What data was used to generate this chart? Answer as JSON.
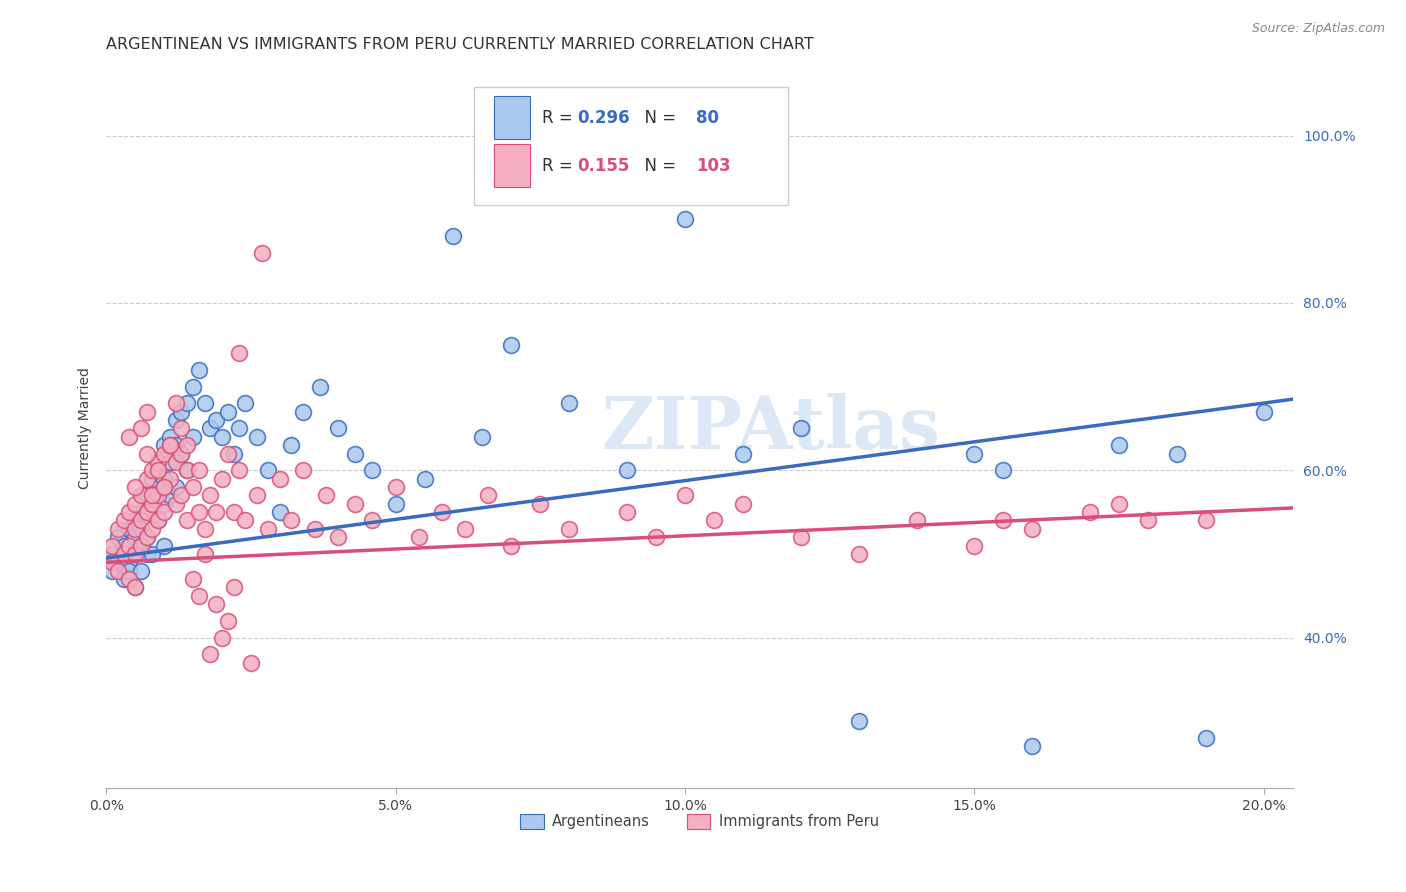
{
  "title": "ARGENTINEAN VS IMMIGRANTS FROM PERU CURRENTLY MARRIED CORRELATION CHART",
  "source": "Source: ZipAtlas.com",
  "ylabel": "Currently Married",
  "watermark": "ZIPAtlas",
  "legend_blue_R": "0.296",
  "legend_blue_N": "80",
  "legend_pink_R": "0.155",
  "legend_pink_N": "103",
  "legend_blue_label": "Argentineans",
  "legend_pink_label": "Immigrants from Peru",
  "x_ticks_vals": [
    0.0,
    0.05,
    0.1,
    0.15,
    0.2
  ],
  "x_ticks_labels": [
    "0.0%",
    "5.0%",
    "10.0%",
    "15.0%",
    "20.0%"
  ],
  "y_ticks_vals": [
    0.4,
    0.6,
    0.8,
    1.0
  ],
  "y_ticks_labels": [
    "40.0%",
    "60.0%",
    "80.0%",
    "100.0%"
  ],
  "xlim": [
    0.0,
    0.205
  ],
  "ylim": [
    0.22,
    1.08
  ],
  "blue_color": "#aac9ee",
  "pink_color": "#f4afc0",
  "line_blue": "#3a6bbf",
  "line_pink": "#d94f7a",
  "title_fontsize": 11.5,
  "source_fontsize": 9,
  "blue_x": [
    0.001,
    0.001,
    0.002,
    0.002,
    0.003,
    0.003,
    0.003,
    0.004,
    0.004,
    0.004,
    0.005,
    0.005,
    0.005,
    0.005,
    0.006,
    0.006,
    0.006,
    0.006,
    0.007,
    0.007,
    0.007,
    0.007,
    0.008,
    0.008,
    0.008,
    0.009,
    0.009,
    0.009,
    0.01,
    0.01,
    0.01,
    0.01,
    0.011,
    0.011,
    0.011,
    0.012,
    0.012,
    0.012,
    0.013,
    0.013,
    0.014,
    0.014,
    0.015,
    0.015,
    0.016,
    0.017,
    0.018,
    0.019,
    0.02,
    0.021,
    0.022,
    0.023,
    0.024,
    0.026,
    0.028,
    0.03,
    0.032,
    0.034,
    0.037,
    0.04,
    0.043,
    0.046,
    0.05,
    0.055,
    0.06,
    0.065,
    0.07,
    0.08,
    0.09,
    0.1,
    0.11,
    0.12,
    0.13,
    0.15,
    0.155,
    0.16,
    0.175,
    0.185,
    0.19,
    0.2
  ],
  "blue_y": [
    0.5,
    0.48,
    0.52,
    0.49,
    0.51,
    0.5,
    0.47,
    0.53,
    0.49,
    0.48,
    0.54,
    0.52,
    0.5,
    0.46,
    0.55,
    0.53,
    0.51,
    0.48,
    0.57,
    0.55,
    0.52,
    0.5,
    0.59,
    0.56,
    0.5,
    0.6,
    0.57,
    0.54,
    0.63,
    0.59,
    0.56,
    0.51,
    0.64,
    0.61,
    0.57,
    0.66,
    0.63,
    0.58,
    0.67,
    0.62,
    0.68,
    0.6,
    0.7,
    0.64,
    0.72,
    0.68,
    0.65,
    0.66,
    0.64,
    0.67,
    0.62,
    0.65,
    0.68,
    0.64,
    0.6,
    0.55,
    0.63,
    0.67,
    0.7,
    0.65,
    0.62,
    0.6,
    0.56,
    0.59,
    0.88,
    0.64,
    0.75,
    0.68,
    0.6,
    0.9,
    0.62,
    0.65,
    0.3,
    0.62,
    0.6,
    0.27,
    0.63,
    0.62,
    0.28,
    0.67
  ],
  "pink_x": [
    0.001,
    0.001,
    0.002,
    0.002,
    0.003,
    0.003,
    0.004,
    0.004,
    0.004,
    0.005,
    0.005,
    0.005,
    0.005,
    0.006,
    0.006,
    0.006,
    0.007,
    0.007,
    0.007,
    0.008,
    0.008,
    0.008,
    0.009,
    0.009,
    0.009,
    0.01,
    0.01,
    0.01,
    0.011,
    0.011,
    0.012,
    0.012,
    0.013,
    0.013,
    0.014,
    0.014,
    0.015,
    0.016,
    0.016,
    0.017,
    0.018,
    0.019,
    0.02,
    0.021,
    0.022,
    0.023,
    0.024,
    0.026,
    0.028,
    0.03,
    0.032,
    0.034,
    0.036,
    0.038,
    0.04,
    0.043,
    0.046,
    0.05,
    0.054,
    0.058,
    0.062,
    0.066,
    0.07,
    0.075,
    0.08,
    0.09,
    0.095,
    0.1,
    0.105,
    0.11,
    0.12,
    0.13,
    0.14,
    0.15,
    0.155,
    0.16,
    0.17,
    0.175,
    0.18,
    0.19,
    0.004,
    0.005,
    0.006,
    0.007,
    0.007,
    0.008,
    0.009,
    0.01,
    0.011,
    0.012,
    0.013,
    0.014,
    0.015,
    0.016,
    0.017,
    0.018,
    0.019,
    0.02,
    0.021,
    0.022,
    0.023,
    0.025,
    0.027
  ],
  "pink_y": [
    0.51,
    0.49,
    0.53,
    0.48,
    0.54,
    0.5,
    0.55,
    0.51,
    0.47,
    0.56,
    0.53,
    0.5,
    0.46,
    0.57,
    0.54,
    0.51,
    0.59,
    0.55,
    0.52,
    0.6,
    0.56,
    0.53,
    0.61,
    0.57,
    0.54,
    0.62,
    0.58,
    0.55,
    0.63,
    0.59,
    0.61,
    0.56,
    0.62,
    0.57,
    0.6,
    0.54,
    0.58,
    0.55,
    0.6,
    0.53,
    0.57,
    0.55,
    0.59,
    0.62,
    0.55,
    0.6,
    0.54,
    0.57,
    0.53,
    0.59,
    0.54,
    0.6,
    0.53,
    0.57,
    0.52,
    0.56,
    0.54,
    0.58,
    0.52,
    0.55,
    0.53,
    0.57,
    0.51,
    0.56,
    0.53,
    0.55,
    0.52,
    0.57,
    0.54,
    0.56,
    0.52,
    0.5,
    0.54,
    0.51,
    0.54,
    0.53,
    0.55,
    0.56,
    0.54,
    0.54,
    0.64,
    0.58,
    0.65,
    0.62,
    0.67,
    0.57,
    0.6,
    0.58,
    0.63,
    0.68,
    0.65,
    0.63,
    0.47,
    0.45,
    0.5,
    0.38,
    0.44,
    0.4,
    0.42,
    0.46,
    0.74,
    0.37,
    0.86
  ],
  "trendline_blue_x0": 0.0,
  "trendline_blue_y0": 0.495,
  "trendline_blue_x1": 0.205,
  "trendline_blue_y1": 0.685,
  "trendline_pink_x0": 0.0,
  "trendline_pink_y0": 0.49,
  "trendline_pink_x1": 0.205,
  "trendline_pink_y1": 0.555
}
